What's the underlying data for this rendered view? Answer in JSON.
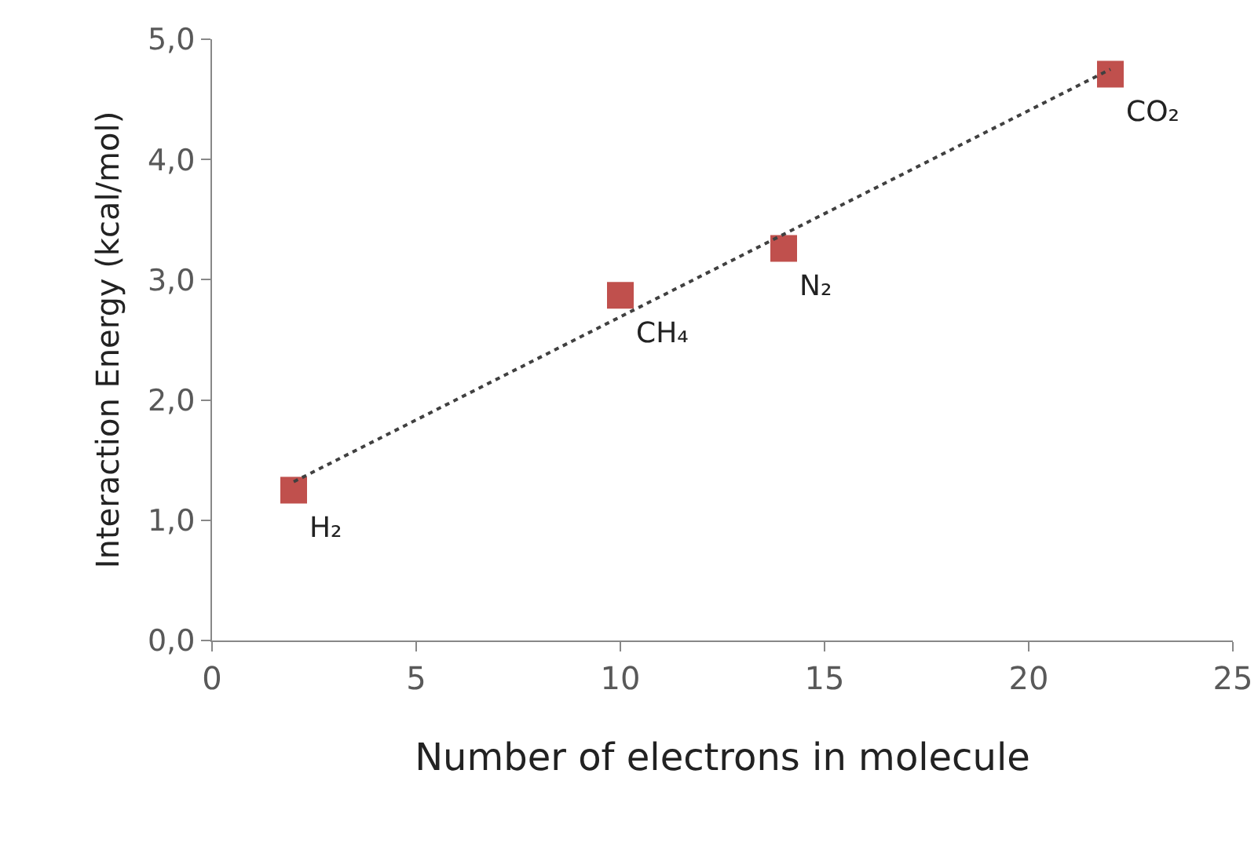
{
  "chart_data": {
    "type": "scatter",
    "xlabel": "Number of electrons in molecule",
    "ylabel": "Interaction Energy (kcal/mol)",
    "x": [
      2,
      10,
      14,
      22
    ],
    "series": [
      {
        "type": "scatter",
        "color": "#c0504d",
        "marker": "square",
        "values": [
          1.25,
          2.87,
          3.26,
          4.71
        ]
      },
      {
        "type": "line",
        "color": "#404040",
        "line_style": "dotted",
        "marker": "none",
        "x": [
          2,
          22
        ],
        "values": [
          1.32,
          4.75
        ]
      }
    ],
    "annotations": [
      {
        "text": "H₂",
        "x": 2,
        "y": 1.25
      },
      {
        "text": "CH₄",
        "x": 10,
        "y": 2.87
      },
      {
        "text": "N₂",
        "x": 14,
        "y": 3.26
      },
      {
        "text": "CO₂",
        "x": 22,
        "y": 4.71
      }
    ],
    "xlim": [
      0,
      25
    ],
    "xticks": [
      0,
      5,
      10,
      15,
      20,
      25
    ],
    "ylim": [
      0,
      5
    ],
    "yticks": [
      {
        "value": 0,
        "label": "0,0"
      },
      {
        "value": 1,
        "label": "1,0"
      },
      {
        "value": 2,
        "label": "2,0"
      },
      {
        "value": 3,
        "label": "3,0"
      },
      {
        "value": 4,
        "label": "4,0"
      },
      {
        "value": 5,
        "label": "5,0"
      }
    ],
    "grid": false
  }
}
